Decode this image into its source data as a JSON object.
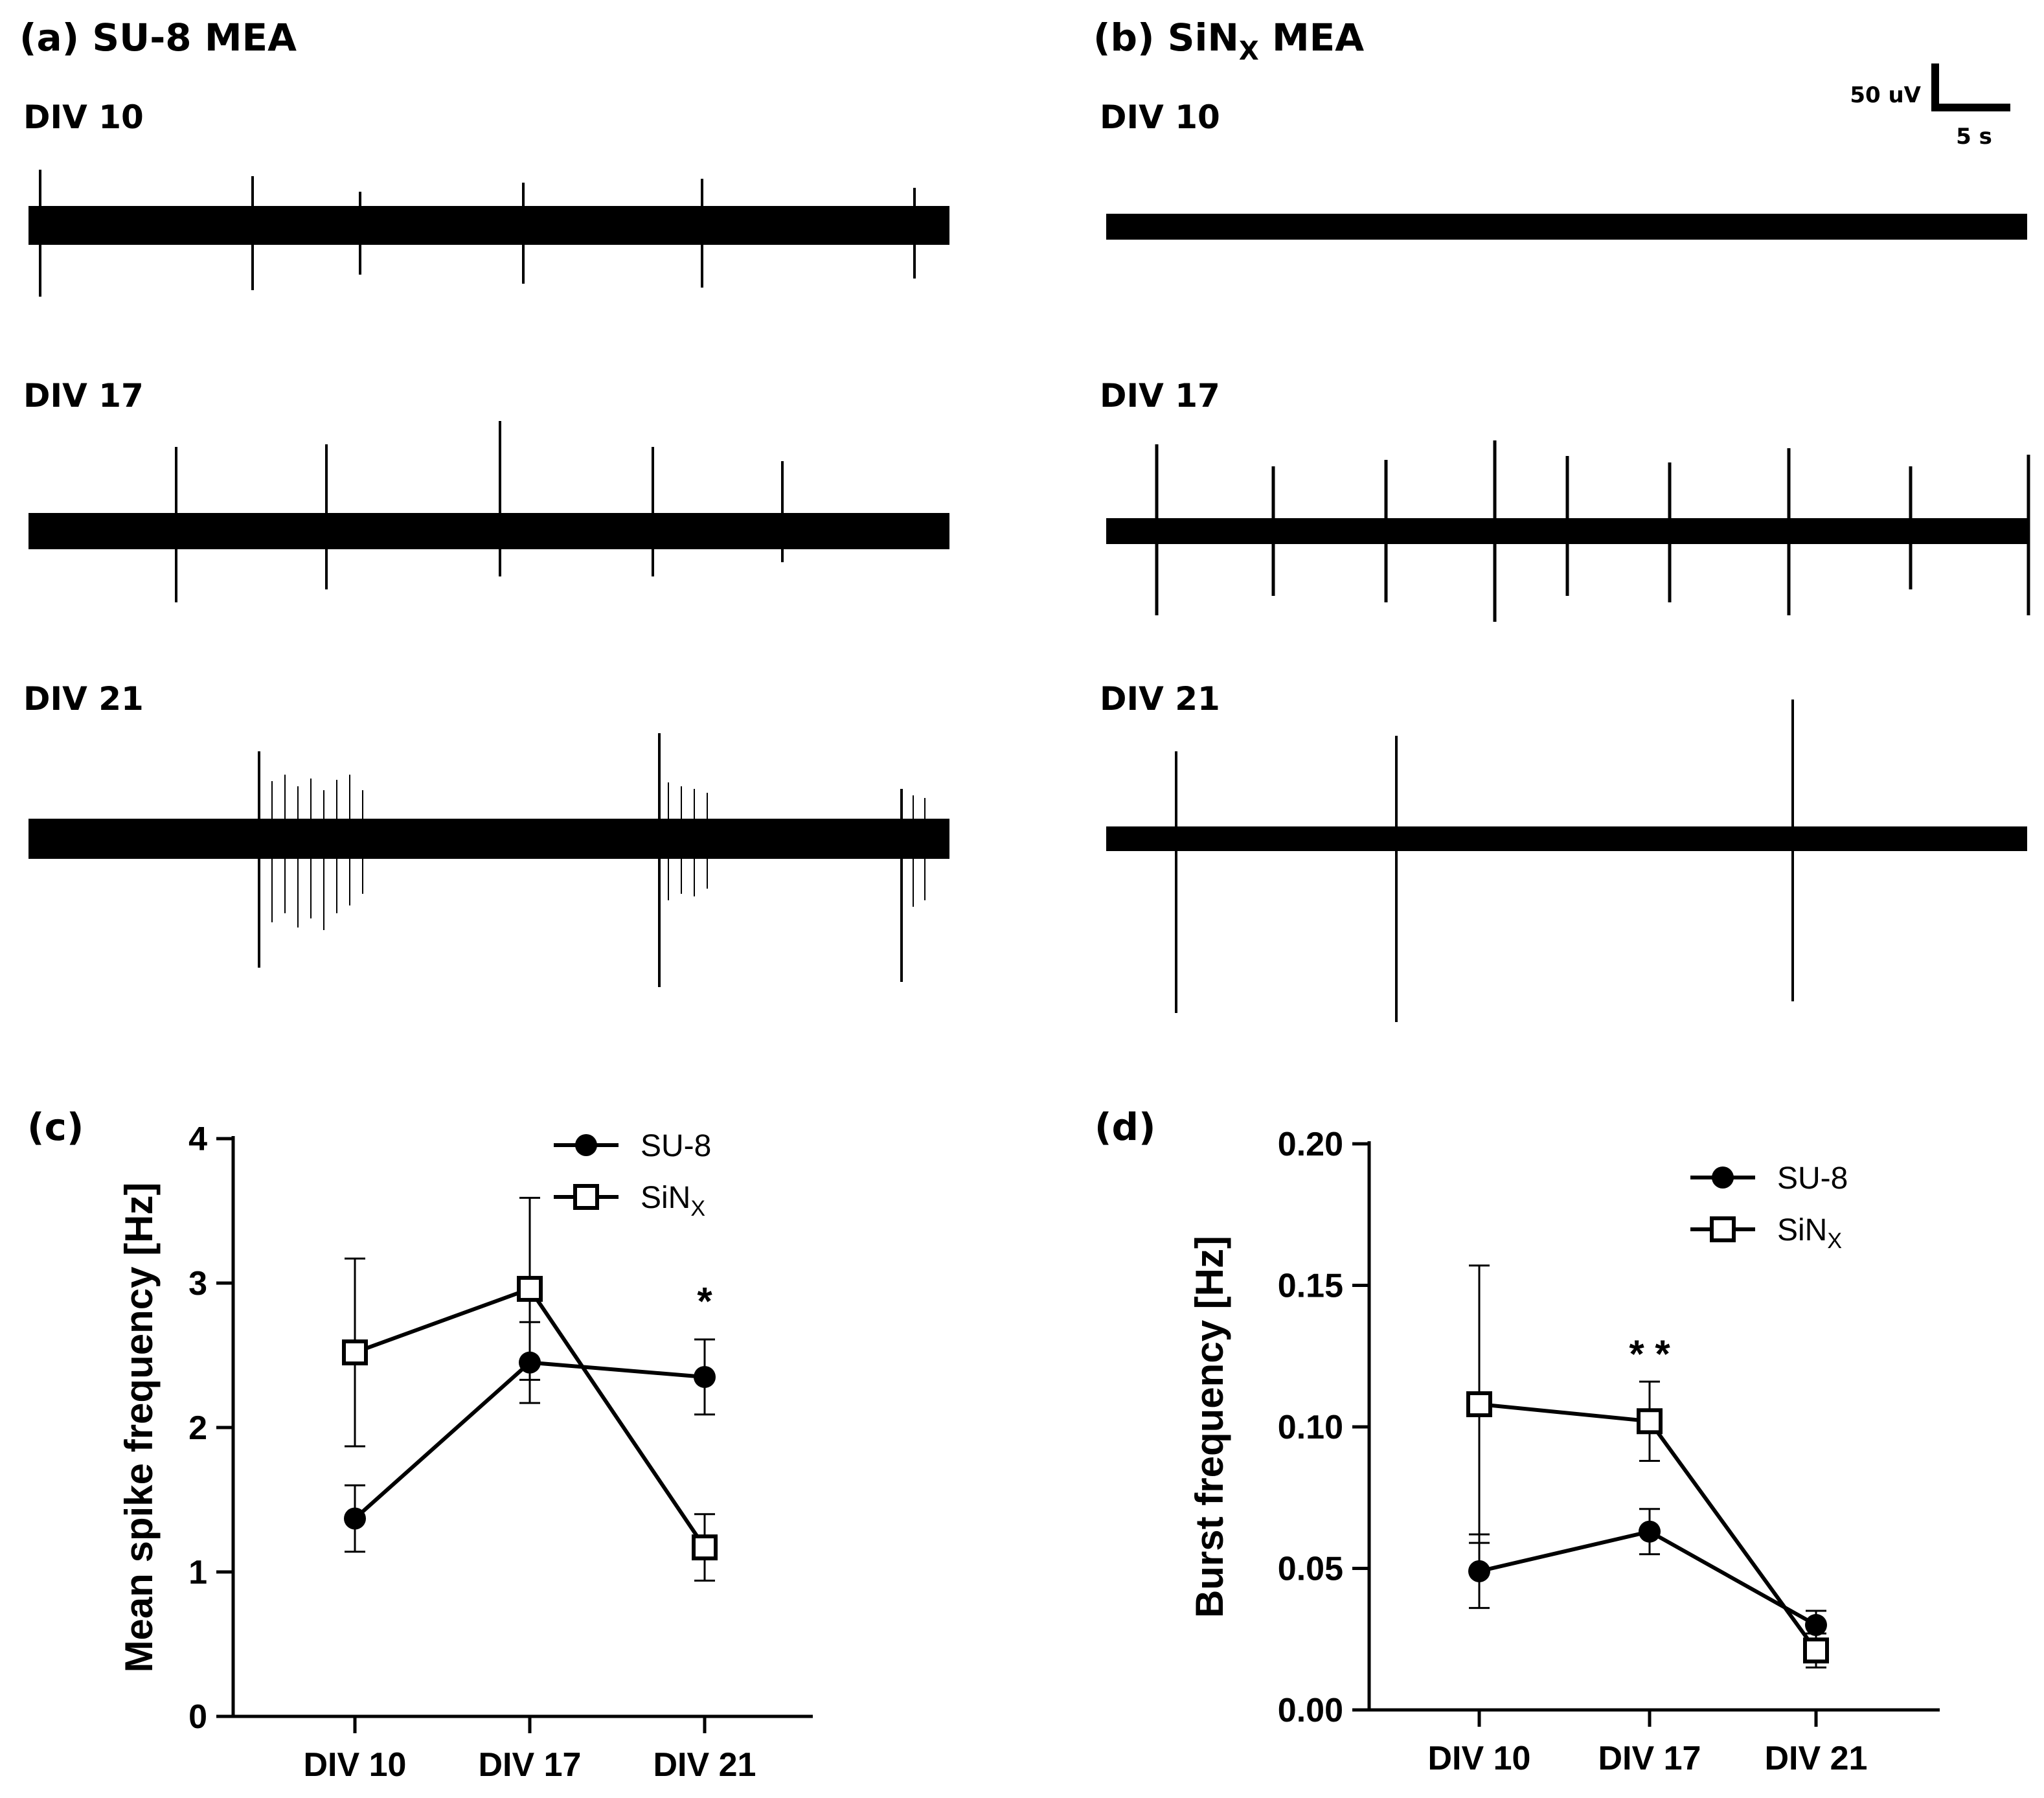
{
  "panels": {
    "a": {
      "title": "(a) SU-8 MEA",
      "tracks": [
        "DIV 10",
        "DIV 17",
        "DIV 21"
      ]
    },
    "b": {
      "title_main": "(b) SiN",
      "title_sub": "X",
      "title_end": " MEA",
      "tracks": [
        "DIV 10",
        "DIV 17",
        "DIV 21"
      ]
    },
    "scale_bar": {
      "amplitude": "50 uV",
      "time": "5 s"
    }
  },
  "chart_data": [
    {
      "id": "c",
      "type": "line",
      "panel_label": "(c)",
      "title": "",
      "xlabel": "",
      "ylabel": "Mean spike frequency [Hz]",
      "categories": [
        "DIV 10",
        "DIV 17",
        "DIV 21"
      ],
      "ylim": [
        0,
        4
      ],
      "yticks": [
        "0",
        "1",
        "2",
        "3",
        "4"
      ],
      "grid": false,
      "legend_position": "top-right",
      "series": [
        {
          "name": "SU-8",
          "marker": "filled-circle",
          "values": [
            1.37,
            2.45,
            2.35
          ],
          "errors": [
            0.23,
            0.28,
            0.26
          ]
        },
        {
          "name": "SiN",
          "name_sub": "X",
          "marker": "open-square",
          "values": [
            2.52,
            2.96,
            1.17
          ],
          "errors": [
            0.65,
            0.63,
            0.23
          ]
        }
      ],
      "annotations": [
        {
          "category": "DIV 21",
          "text": "*",
          "y": 2.9
        }
      ]
    },
    {
      "id": "d",
      "type": "line",
      "panel_label": "(d)",
      "title": "",
      "xlabel": "",
      "ylabel": "Burst frequency [Hz]",
      "categories": [
        "DIV 10",
        "DIV 17",
        "DIV 21"
      ],
      "ylim": [
        0,
        0.2
      ],
      "yticks": [
        "0.00",
        "0.05",
        "0.10",
        "0.15",
        "0.20"
      ],
      "grid": false,
      "legend_position": "top-right",
      "series": [
        {
          "name": "SU-8",
          "marker": "filked-circle",
          "values": [
            0.049,
            0.063,
            0.03
          ],
          "errors": [
            0.013,
            0.008,
            0.005
          ]
        },
        {
          "name": "SiN",
          "name_sub": "X",
          "marker": "open-square",
          "values": [
            0.108,
            0.102,
            0.021
          ],
          "errors": [
            0.049,
            0.014,
            0.006
          ]
        }
      ],
      "annotations": [
        {
          "category": "DIV 17",
          "text": "* *",
          "y": 0.127
        }
      ]
    }
  ]
}
